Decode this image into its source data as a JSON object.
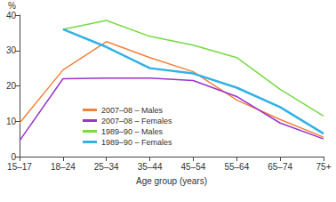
{
  "chart_data": {
    "type": "line",
    "x_label": "Age group (years)",
    "y_label": "%",
    "categories": [
      "15–17",
      "18–24",
      "25–34",
      "35–44",
      "45–54",
      "55–64",
      "65–74",
      "75+"
    ],
    "series": [
      {
        "name": "2007–08 – Males",
        "color": "#f4813a",
        "values": [
          9.5,
          24.5,
          32.5,
          28,
          24,
          16,
          10.5,
          5.5
        ]
      },
      {
        "name": "2007–08 – Females",
        "color": "#9933cc",
        "values": [
          4.5,
          22,
          22.2,
          22.2,
          21.5,
          17,
          9.5,
          5
        ]
      },
      {
        "name": "1989–90 – Males",
        "color": "#77d944",
        "values": [
          null,
          36,
          38.5,
          34,
          31.5,
          28,
          19,
          11.5
        ]
      },
      {
        "name": "1989–90 – Females",
        "color": "#33b2e6",
        "values": [
          null,
          36,
          31,
          25,
          23.5,
          19.5,
          14,
          6.5
        ]
      }
    ],
    "ylim": [
      0,
      40
    ],
    "yticks": [
      0,
      10,
      20,
      30,
      40
    ],
    "grid": false,
    "legend": "bottom"
  }
}
